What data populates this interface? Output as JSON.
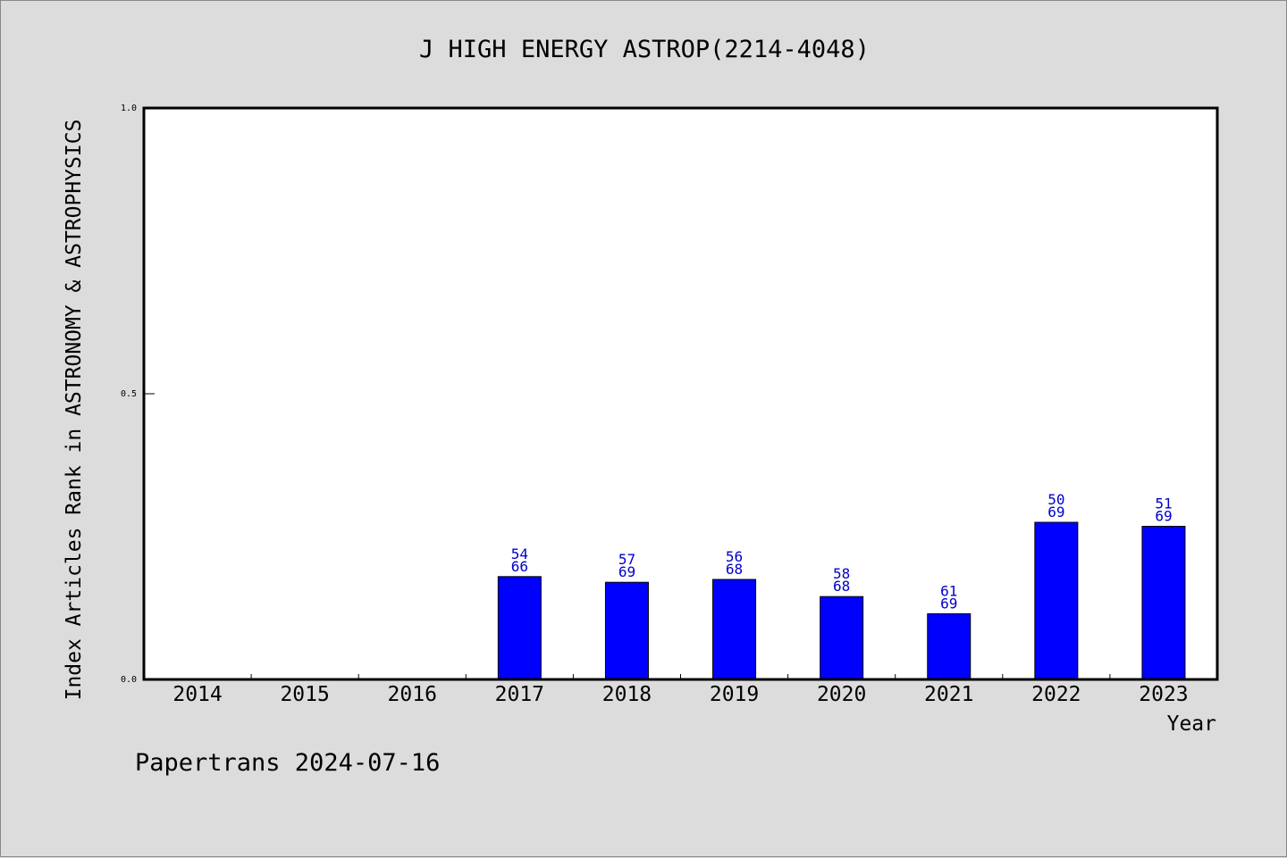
{
  "chart_data": {
    "type": "bar",
    "title": "J HIGH ENERGY ASTROP(2214-4048)",
    "xlabel": "Year",
    "ylabel": "Index Articles Rank in ASTRONOMY & ASTROPHYSICS",
    "categories": [
      "2014",
      "2015",
      "2016",
      "2017",
      "2018",
      "2019",
      "2020",
      "2021",
      "2022",
      "2023"
    ],
    "series": [
      {
        "values": [
          null,
          null,
          null,
          0.18,
          0.17,
          0.175,
          0.145,
          0.115,
          0.275,
          0.268
        ],
        "labels": [
          null,
          null,
          null,
          [
            "54",
            "66"
          ],
          [
            "57",
            "69"
          ],
          [
            "56",
            "68"
          ],
          [
            "58",
            "68"
          ],
          [
            "61",
            "69"
          ],
          [
            "50",
            "69"
          ],
          [
            "51",
            "69"
          ]
        ]
      }
    ],
    "ylim": [
      0,
      1.0
    ],
    "yticks": [
      "0.0",
      "0.5",
      "1.0"
    ],
    "grid": false,
    "bar_color": "#0000ff",
    "label_color": "#0000cc",
    "footer": "Papertrans 2024-07-16"
  }
}
